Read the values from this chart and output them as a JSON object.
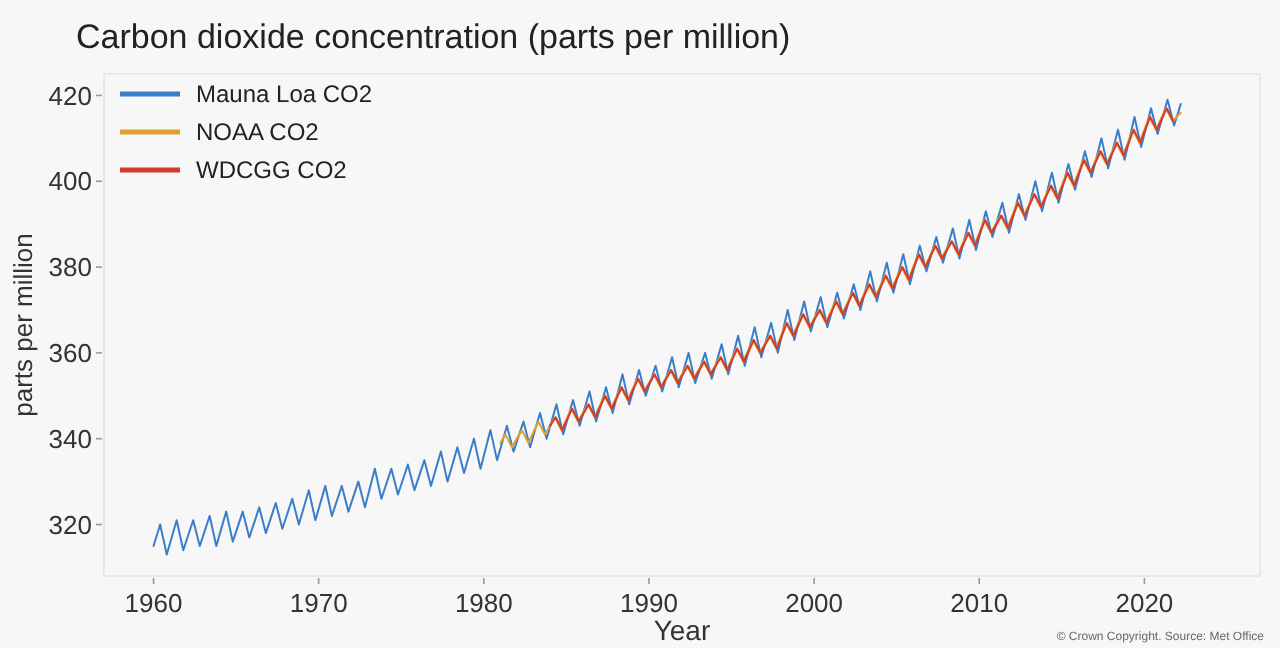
{
  "chart_data": {
    "type": "line",
    "title": "Carbon dioxide concentration (parts per million)",
    "xlabel": "Year",
    "ylabel": "parts per million",
    "annotations": [
      "© Crown Copyright. Source: Met Office"
    ],
    "xlim": [
      1957,
      2027
    ],
    "xticks": [
      1960,
      1970,
      1980,
      1990,
      2000,
      2010,
      2020
    ],
    "ylim": [
      308,
      425
    ],
    "yticks": [
      320,
      340,
      360,
      380,
      400,
      420
    ],
    "grid": false,
    "legend": "top left",
    "series": [
      {
        "name": "Mauna Loa CO2",
        "color": "#3a7dc9",
        "x": [
          1960.0,
          1960.4,
          1960.8,
          1961.4,
          1961.8,
          1962.4,
          1962.8,
          1963.4,
          1963.8,
          1964.4,
          1964.8,
          1965.4,
          1965.8,
          1966.4,
          1966.8,
          1967.4,
          1967.8,
          1968.4,
          1968.8,
          1969.4,
          1969.8,
          1970.4,
          1970.8,
          1971.4,
          1971.8,
          1972.4,
          1972.8,
          1973.4,
          1973.8,
          1974.4,
          1974.8,
          1975.4,
          1975.8,
          1976.4,
          1976.8,
          1977.4,
          1977.8,
          1978.4,
          1978.8,
          1979.4,
          1979.8,
          1980.4,
          1980.8,
          1981.4,
          1981.8,
          1982.4,
          1982.8,
          1983.4,
          1983.8,
          1984.4,
          1984.8,
          1985.4,
          1985.8,
          1986.4,
          1986.8,
          1987.4,
          1987.8,
          1988.4,
          1988.8,
          1989.4,
          1989.8,
          1990.4,
          1990.8,
          1991.4,
          1991.8,
          1992.4,
          1992.8,
          1993.4,
          1993.8,
          1994.4,
          1994.8,
          1995.4,
          1995.8,
          1996.4,
          1996.8,
          1997.4,
          1997.8,
          1998.4,
          1998.8,
          1999.4,
          1999.8,
          2000.4,
          2000.8,
          2001.4,
          2001.8,
          2002.4,
          2002.8,
          2003.4,
          2003.8,
          2004.4,
          2004.8,
          2005.4,
          2005.8,
          2006.4,
          2006.8,
          2007.4,
          2007.8,
          2008.4,
          2008.8,
          2009.4,
          2009.8,
          2010.4,
          2010.8,
          2011.4,
          2011.8,
          2012.4,
          2012.8,
          2013.4,
          2013.8,
          2014.4,
          2014.8,
          2015.4,
          2015.8,
          2016.4,
          2016.8,
          2017.4,
          2017.8,
          2018.4,
          2018.8,
          2019.4,
          2019.8,
          2020.4,
          2020.8,
          2021.4,
          2021.8,
          2022.2
        ],
        "values": [
          315,
          320,
          313,
          321,
          314,
          321,
          315,
          322,
          315,
          323,
          316,
          323,
          317,
          324,
          318,
          325,
          319,
          326,
          320,
          328,
          321,
          329,
          322,
          329,
          323,
          330,
          324,
          333,
          326,
          333,
          327,
          334,
          328,
          335,
          329,
          337,
          330,
          338,
          332,
          340,
          333,
          342,
          335,
          343,
          337,
          344,
          338,
          346,
          340,
          348,
          341,
          349,
          343,
          351,
          344,
          352,
          346,
          355,
          348,
          356,
          350,
          357,
          351,
          359,
          352,
          360,
          353,
          360,
          354,
          362,
          355,
          364,
          357,
          366,
          359,
          367,
          360,
          370,
          363,
          372,
          365,
          373,
          366,
          374,
          368,
          376,
          370,
          379,
          372,
          381,
          374,
          383,
          376,
          385,
          379,
          387,
          381,
          389,
          382,
          391,
          384,
          393,
          387,
          395,
          388,
          397,
          391,
          400,
          393,
          402,
          395,
          404,
          398,
          407,
          401,
          410,
          403,
          412,
          405,
          415,
          408,
          417,
          411,
          419,
          413,
          418
        ]
      },
      {
        "name": "NOAA CO2",
        "color": "#e0a030",
        "x": [
          1981.0,
          1981.3,
          1981.7,
          1982.3,
          1982.7,
          1983.3,
          1983.7,
          1984.3,
          1984.7,
          1985.3,
          1985.7,
          1986.3,
          1986.7,
          1987.3,
          1987.7,
          1988.3,
          1988.7,
          1989.3,
          1989.7,
          1990.3,
          1990.7,
          1991.3,
          1991.7,
          1992.3,
          1992.7,
          1993.3,
          1993.7,
          1994.3,
          1994.7,
          1995.3,
          1995.7,
          1996.3,
          1996.7,
          1997.3,
          1997.7,
          1998.3,
          1998.7,
          1999.3,
          1999.7,
          2000.3,
          2000.7,
          2001.3,
          2001.7,
          2002.3,
          2002.7,
          2003.3,
          2003.7,
          2004.3,
          2004.7,
          2005.3,
          2005.7,
          2006.3,
          2006.7,
          2007.3,
          2007.7,
          2008.3,
          2008.7,
          2009.3,
          2009.7,
          2010.3,
          2010.7,
          2011.3,
          2011.7,
          2012.3,
          2012.7,
          2013.3,
          2013.7,
          2014.3,
          2014.7,
          2015.3,
          2015.7,
          2016.3,
          2016.7,
          2017.3,
          2017.7,
          2018.3,
          2018.7,
          2019.3,
          2019.7,
          2020.3,
          2020.7,
          2021.3,
          2021.7,
          2022.2
        ],
        "values": [
          339,
          341,
          338,
          342,
          339,
          344,
          341,
          345,
          342,
          347,
          344,
          348,
          345,
          350,
          347,
          352,
          349,
          354,
          351,
          355,
          352,
          356,
          353,
          357,
          354,
          358,
          355,
          359,
          356,
          361,
          358,
          363,
          360,
          364,
          361,
          367,
          364,
          369,
          366,
          370,
          367,
          372,
          369,
          374,
          371,
          376,
          373,
          378,
          375,
          380,
          377,
          383,
          380,
          385,
          382,
          386,
          383,
          388,
          385,
          391,
          388,
          392,
          389,
          395,
          392,
          397,
          394,
          399,
          396,
          402,
          399,
          405,
          402,
          407,
          404,
          409,
          406,
          412,
          409,
          415,
          412,
          417,
          414,
          416
        ]
      },
      {
        "name": "WDCGG CO2",
        "color": "#d63a2a",
        "x": [
          1984.0,
          1984.35,
          1984.75,
          1985.35,
          1985.75,
          1986.35,
          1986.75,
          1987.35,
          1987.75,
          1988.35,
          1988.75,
          1989.35,
          1989.75,
          1990.35,
          1990.75,
          1991.35,
          1991.75,
          1992.35,
          1992.75,
          1993.35,
          1993.75,
          1994.35,
          1994.75,
          1995.35,
          1995.75,
          1996.35,
          1996.75,
          1997.35,
          1997.75,
          1998.35,
          1998.75,
          1999.35,
          1999.75,
          2000.35,
          2000.75,
          2001.35,
          2001.75,
          2002.35,
          2002.75,
          2003.35,
          2003.75,
          2004.35,
          2004.75,
          2005.35,
          2005.75,
          2006.35,
          2006.75,
          2007.35,
          2007.75,
          2008.35,
          2008.75,
          2009.35,
          2009.75,
          2010.35,
          2010.75,
          2011.35,
          2011.75,
          2012.35,
          2012.75,
          2013.35,
          2013.75,
          2014.35,
          2014.75,
          2015.35,
          2015.75,
          2016.35,
          2016.75,
          2017.35,
          2017.75,
          2018.35,
          2018.75,
          2019.35,
          2019.75,
          2020.35,
          2020.75,
          2021.35,
          2021.75
        ],
        "values": [
          343,
          345,
          342,
          347,
          344,
          348,
          345,
          350,
          347,
          352,
          349,
          354,
          351,
          355,
          352,
          356,
          353,
          357,
          354,
          358,
          355,
          359,
          356,
          361,
          358,
          363,
          360,
          364,
          361,
          367,
          364,
          369,
          366,
          370,
          367,
          372,
          369,
          374,
          371,
          376,
          373,
          378,
          375,
          380,
          377,
          383,
          380,
          385,
          382,
          386,
          383,
          388,
          385,
          391,
          388,
          392,
          389,
          395,
          392,
          397,
          394,
          399,
          396,
          402,
          399,
          405,
          402,
          407,
          404,
          409,
          406,
          412,
          409,
          415,
          412,
          417,
          414
        ]
      }
    ]
  }
}
